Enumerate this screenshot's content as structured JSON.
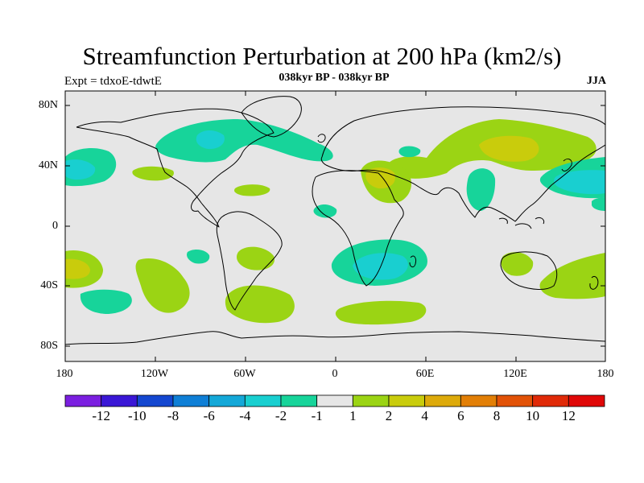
{
  "title": "Streamfunction Perturbation at 200 hPa (km2/s)",
  "subtitle_left": "Expt = tdxoE-tdwtE",
  "subtitle_center": "038kyr BP - 038kyr BP",
  "subtitle_right": "JJA",
  "lat_labels": [
    "80N",
    "40N",
    "0",
    "40S",
    "80S"
  ],
  "lon_labels": [
    "180",
    "120W",
    "60W",
    "0",
    "60E",
    "120E",
    "180"
  ],
  "colorbar": {
    "labels": [
      "-12",
      "-10",
      "-8",
      "-6",
      "-4",
      "-2",
      "-1",
      "1",
      "2",
      "4",
      "6",
      "8",
      "10",
      "12"
    ],
    "colors": [
      "#7b1fe0",
      "#3a17d6",
      "#1447d0",
      "#0f7fd6",
      "#14a8d8",
      "#19cfd0",
      "#17d49a",
      "#e6e6e6",
      "#9bd414",
      "#c9cc0c",
      "#ddaa0a",
      "#e27f06",
      "#e25207",
      "#e02a08",
      "#e00808"
    ]
  },
  "map_colors": {
    "neutral": "#e6e6e6",
    "coast": "#000000"
  },
  "anomaly_regions": [
    {
      "name": "north-atlantic-low",
      "level": "-2"
    },
    {
      "name": "canada-low-core",
      "level": "-4"
    },
    {
      "name": "north-pacific-east-low",
      "level": "-4"
    },
    {
      "name": "north-pacific-west-low",
      "level": "-4"
    },
    {
      "name": "asia-high",
      "level": "4"
    },
    {
      "name": "mediterranean-high",
      "level": "4"
    },
    {
      "name": "south-africa-low",
      "level": "-4"
    },
    {
      "name": "south-pacific-high",
      "level": "4"
    },
    {
      "name": "south-pacific-ring",
      "level": "2"
    },
    {
      "name": "south-america-high",
      "level": "2"
    },
    {
      "name": "south-ocean-high",
      "level": "2"
    },
    {
      "name": "australia-high",
      "level": "2"
    }
  ]
}
